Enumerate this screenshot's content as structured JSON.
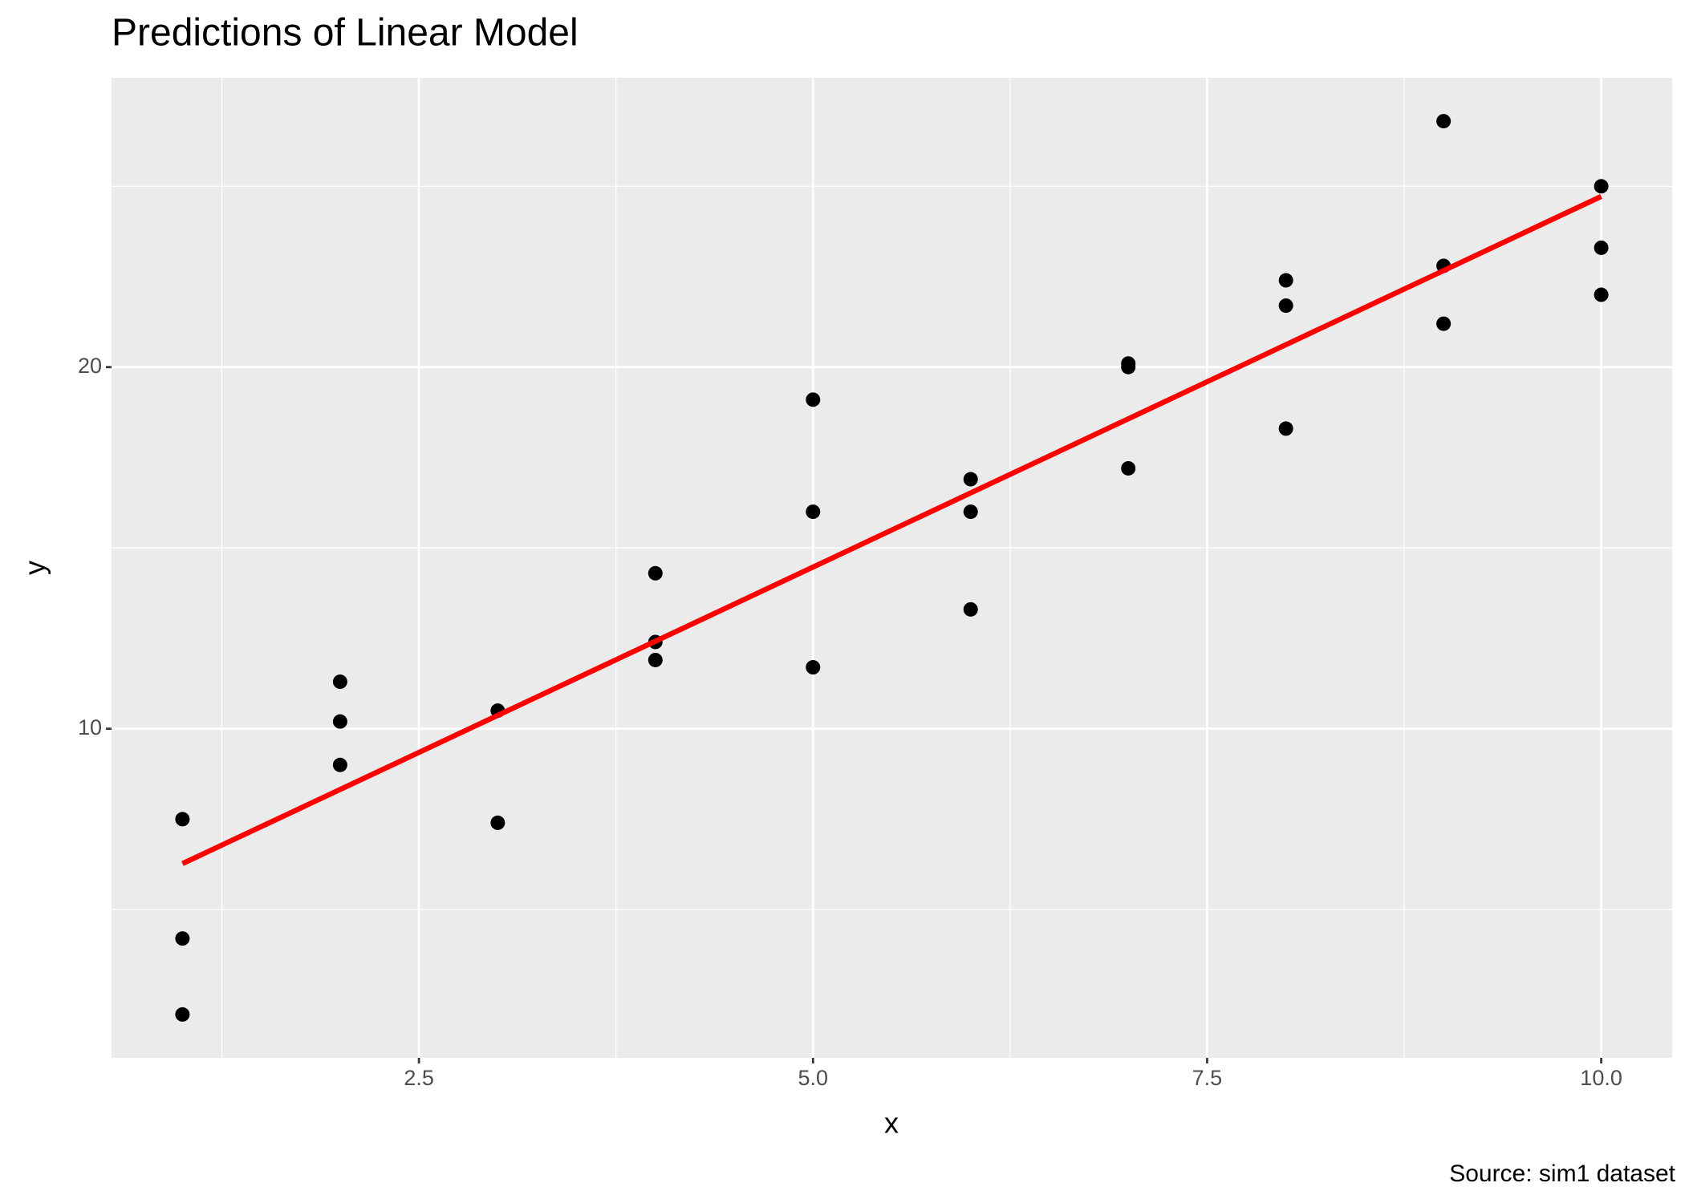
{
  "chart_data": {
    "type": "scatter",
    "title": "Predictions of Linear Model",
    "x_label": "x",
    "y_label": "y",
    "caption": "Source: sim1 dataset",
    "series": [
      {
        "type": "scatter",
        "color": "#000000",
        "x": [
          1,
          1,
          1,
          2,
          2,
          2,
          3,
          3,
          4,
          4,
          4,
          5,
          5,
          5,
          6,
          6,
          6,
          7,
          7,
          7,
          8,
          8,
          8,
          9,
          9,
          9,
          10,
          10,
          10
        ],
        "values": [
          7.5,
          4.2,
          2.1,
          11.3,
          10.2,
          9.0,
          10.5,
          7.4,
          14.3,
          12.4,
          11.9,
          19.1,
          16.0,
          11.7,
          16.9,
          16.0,
          13.3,
          20.1,
          20.0,
          17.2,
          22.4,
          21.7,
          18.3,
          26.8,
          22.8,
          21.2,
          25.0,
          23.3,
          22.0
        ]
      },
      {
        "type": "line",
        "color": "#ff0000",
        "x": [
          1,
          10
        ],
        "values": [
          6.27,
          24.72
        ]
      }
    ],
    "xlim": [
      0.55,
      10.45
    ],
    "ylim": [
      0.9,
      28.0
    ],
    "xticks": [
      {
        "value": 2.5,
        "label": "2.5"
      },
      {
        "value": 5,
        "label": "5.0"
      },
      {
        "value": 7.5,
        "label": "7.5"
      },
      {
        "value": 10,
        "label": "10.0"
      }
    ],
    "yticks": [
      10,
      20
    ],
    "grid": true
  }
}
